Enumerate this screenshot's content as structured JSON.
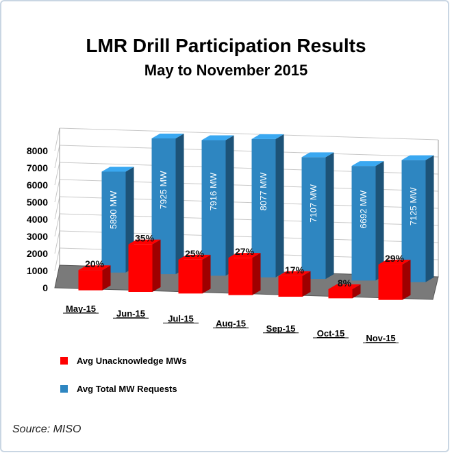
{
  "chart_data": {
    "type": "bar",
    "title": "LMR Drill Participation Results",
    "subtitle": "May to November 2015",
    "categories": [
      "May-15",
      "Jun-15",
      "Jul-15",
      "Aug-15",
      "Sep-15",
      "Oct-15",
      "Nov-15"
    ],
    "ylim": [
      0,
      8000
    ],
    "yticks": [
      0,
      1000,
      2000,
      3000,
      4000,
      5000,
      6000,
      7000,
      8000
    ],
    "series": [
      {
        "name": "Avg Unacknowledge MWs",
        "color": "#ff0000",
        "values": [
          1178,
          2774,
          1979,
          2181,
          1208,
          535,
          2066
        ],
        "labels": [
          "20%",
          "35%",
          "25%",
          "27%",
          "17%",
          "8%",
          "29%"
        ]
      },
      {
        "name": "Avg Total MW Requests",
        "color": "#2e86c1",
        "values": [
          5890,
          7925,
          7916,
          8077,
          7107,
          6692,
          7125
        ],
        "labels": [
          "5890 MW",
          "7925 MW",
          "7916 MW",
          "8077 MW",
          "7107 MW",
          "6692 MW",
          "7125 MW"
        ]
      }
    ],
    "legend_position": "bottom-left",
    "grid": true,
    "source": "Source: MISO"
  }
}
